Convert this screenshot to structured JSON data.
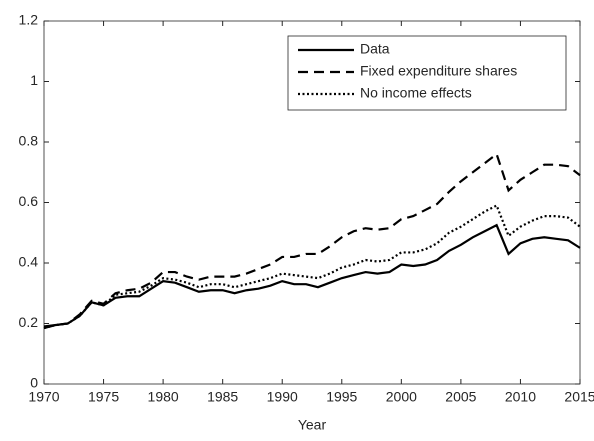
{
  "chart_data": {
    "type": "line",
    "xlabel": "Year",
    "x": [
      1970,
      1971,
      1972,
      1973,
      1974,
      1975,
      1976,
      1977,
      1978,
      1979,
      1980,
      1981,
      1982,
      1983,
      1984,
      1985,
      1986,
      1987,
      1988,
      1989,
      1990,
      1991,
      1992,
      1993,
      1994,
      1995,
      1996,
      1997,
      1998,
      1999,
      2000,
      2001,
      2002,
      2003,
      2004,
      2005,
      2006,
      2007,
      2008,
      2009,
      2010,
      2011,
      2012,
      2013,
      2014,
      2015
    ],
    "series": [
      {
        "name": "Data",
        "color": "#000000",
        "dash": "solid",
        "values": [
          0.19,
          0.195,
          0.2,
          0.225,
          0.27,
          0.26,
          0.285,
          0.29,
          0.29,
          0.315,
          0.34,
          0.335,
          0.32,
          0.305,
          0.31,
          0.31,
          0.3,
          0.31,
          0.315,
          0.325,
          0.34,
          0.33,
          0.33,
          0.32,
          0.335,
          0.35,
          0.36,
          0.37,
          0.365,
          0.37,
          0.395,
          0.39,
          0.395,
          0.41,
          0.44,
          0.46,
          0.485,
          0.505,
          0.525,
          0.43,
          0.465,
          0.48,
          0.485,
          0.48,
          0.475,
          0.45
        ]
      },
      {
        "name": "Fixed expenditure shares",
        "color": "#000000",
        "dash": "dashed",
        "values": [
          0.185,
          0.195,
          0.2,
          0.23,
          0.275,
          0.265,
          0.3,
          0.31,
          0.315,
          0.335,
          0.37,
          0.37,
          0.355,
          0.345,
          0.355,
          0.355,
          0.355,
          0.365,
          0.38,
          0.395,
          0.42,
          0.42,
          0.43,
          0.43,
          0.455,
          0.485,
          0.505,
          0.515,
          0.51,
          0.515,
          0.545,
          0.555,
          0.575,
          0.595,
          0.635,
          0.67,
          0.7,
          0.73,
          0.76,
          0.64,
          0.675,
          0.7,
          0.725,
          0.725,
          0.72,
          0.69
        ]
      },
      {
        "name": "No income effects",
        "color": "#000000",
        "dash": "dotted",
        "values": [
          0.185,
          0.195,
          0.2,
          0.225,
          0.27,
          0.26,
          0.295,
          0.3,
          0.305,
          0.325,
          0.35,
          0.345,
          0.335,
          0.32,
          0.33,
          0.33,
          0.32,
          0.33,
          0.34,
          0.35,
          0.365,
          0.36,
          0.355,
          0.35,
          0.365,
          0.385,
          0.395,
          0.41,
          0.405,
          0.41,
          0.435,
          0.435,
          0.445,
          0.465,
          0.5,
          0.52,
          0.545,
          0.57,
          0.59,
          0.49,
          0.52,
          0.54,
          0.555,
          0.555,
          0.55,
          0.52
        ]
      }
    ],
    "xlim": [
      1970,
      2015
    ],
    "xticks": [
      1970,
      1975,
      1980,
      1985,
      1990,
      1995,
      2000,
      2005,
      2010,
      2015
    ],
    "ylim": [
      0,
      1.2
    ],
    "yticks": [
      0,
      0.2,
      0.4,
      0.6,
      0.8,
      1,
      1.2
    ],
    "grid": false,
    "legend": "top-right"
  }
}
